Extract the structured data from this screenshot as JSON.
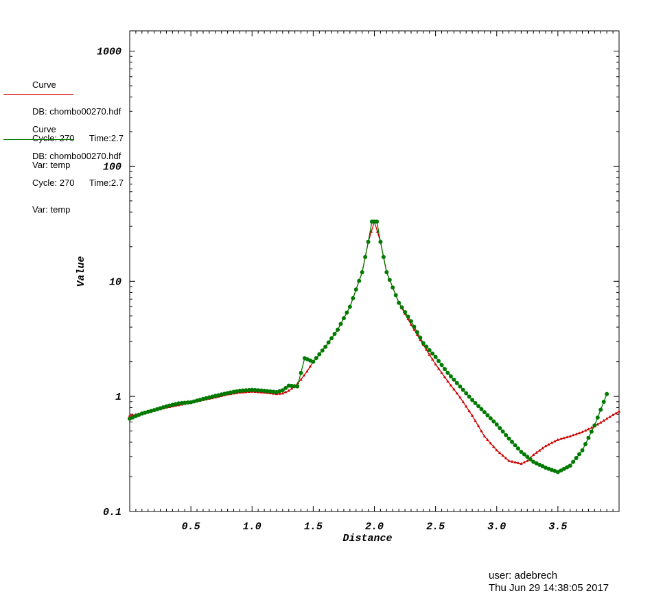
{
  "chart_data": {
    "type": "line",
    "xlabel": "Distance",
    "ylabel": "Value",
    "xlim": [
      0.0,
      4.0
    ],
    "ylim": [
      0.1,
      1500
    ],
    "y_scale": "log",
    "grid": false,
    "legend_position": "top-left",
    "x_ticks": [
      {
        "value": 0.5,
        "label": "0.5"
      },
      {
        "value": 1.0,
        "label": "1.0"
      },
      {
        "value": 1.5,
        "label": "1.5"
      },
      {
        "value": 2.0,
        "label": "2.0"
      },
      {
        "value": 2.5,
        "label": "2.5"
      },
      {
        "value": 3.0,
        "label": "3.0"
      },
      {
        "value": 3.5,
        "label": "3.5"
      }
    ],
    "y_ticks": [
      {
        "value": 0.1,
        "label": "0.1"
      },
      {
        "value": 1,
        "label": "1"
      },
      {
        "value": 10,
        "label": "10"
      },
      {
        "value": 100,
        "label": "100"
      },
      {
        "value": 1000,
        "label": "1000"
      }
    ],
    "series": [
      {
        "color": "#cc0000",
        "marker": "triangle",
        "points": [
          [
            0.0,
            0.68
          ],
          [
            0.1,
            0.71
          ],
          [
            0.2,
            0.75
          ],
          [
            0.3,
            0.8
          ],
          [
            0.4,
            0.84
          ],
          [
            0.5,
            0.88
          ],
          [
            0.6,
            0.93
          ],
          [
            0.7,
            0.98
          ],
          [
            0.8,
            1.04
          ],
          [
            0.9,
            1.08
          ],
          [
            1.0,
            1.1
          ],
          [
            1.1,
            1.08
          ],
          [
            1.2,
            1.05
          ],
          [
            1.25,
            1.06
          ],
          [
            1.3,
            1.12
          ],
          [
            1.35,
            1.22
          ],
          [
            1.4,
            1.4
          ],
          [
            1.45,
            1.65
          ],
          [
            1.5,
            2.0
          ],
          [
            1.6,
            2.7
          ],
          [
            1.7,
            3.8
          ],
          [
            1.8,
            6.0
          ],
          [
            1.9,
            12.0
          ],
          [
            1.95,
            22.0
          ],
          [
            2.0,
            33.0
          ],
          [
            2.05,
            22.0
          ],
          [
            2.1,
            12.0
          ],
          [
            2.2,
            6.5
          ],
          [
            2.3,
            4.2
          ],
          [
            2.4,
            2.8
          ],
          [
            2.5,
            1.9
          ],
          [
            2.6,
            1.35
          ],
          [
            2.7,
            0.98
          ],
          [
            2.8,
            0.68
          ],
          [
            2.9,
            0.45
          ],
          [
            3.0,
            0.34
          ],
          [
            3.1,
            0.275
          ],
          [
            3.2,
            0.26
          ],
          [
            3.25,
            0.275
          ],
          [
            3.3,
            0.31
          ],
          [
            3.4,
            0.37
          ],
          [
            3.5,
            0.42
          ],
          [
            3.6,
            0.45
          ],
          [
            3.7,
            0.49
          ],
          [
            3.8,
            0.55
          ],
          [
            3.9,
            0.64
          ],
          [
            4.0,
            0.74
          ]
        ]
      },
      {
        "color": "#007a00",
        "marker": "circle",
        "points": [
          [
            0.0,
            0.64
          ],
          [
            0.1,
            0.71
          ],
          [
            0.2,
            0.76
          ],
          [
            0.3,
            0.82
          ],
          [
            0.4,
            0.87
          ],
          [
            0.5,
            0.89
          ],
          [
            0.6,
            0.95
          ],
          [
            0.7,
            1.01
          ],
          [
            0.8,
            1.07
          ],
          [
            0.9,
            1.12
          ],
          [
            1.0,
            1.14
          ],
          [
            1.1,
            1.12
          ],
          [
            1.2,
            1.09
          ],
          [
            1.25,
            1.13
          ],
          [
            1.3,
            1.24
          ],
          [
            1.37,
            1.22
          ],
          [
            1.4,
            1.6
          ],
          [
            1.43,
            2.15
          ],
          [
            1.5,
            2.0
          ],
          [
            1.6,
            2.7
          ],
          [
            1.7,
            3.8
          ],
          [
            1.8,
            6.0
          ],
          [
            1.9,
            12.0
          ],
          [
            1.95,
            22.0
          ],
          [
            1.98,
            33.0
          ],
          [
            2.02,
            33.0
          ],
          [
            2.05,
            22.0
          ],
          [
            2.1,
            12.0
          ],
          [
            2.2,
            6.5
          ],
          [
            2.3,
            4.5
          ],
          [
            2.4,
            2.9
          ],
          [
            2.5,
            2.2
          ],
          [
            2.6,
            1.6
          ],
          [
            2.7,
            1.22
          ],
          [
            2.8,
            0.93
          ],
          [
            2.9,
            0.73
          ],
          [
            3.0,
            0.57
          ],
          [
            3.1,
            0.43
          ],
          [
            3.2,
            0.33
          ],
          [
            3.3,
            0.27
          ],
          [
            3.4,
            0.24
          ],
          [
            3.5,
            0.22
          ],
          [
            3.6,
            0.25
          ],
          [
            3.7,
            0.34
          ],
          [
            3.8,
            0.56
          ],
          [
            3.9,
            1.05
          ]
        ]
      }
    ]
  },
  "legend": [
    {
      "line1": "Curve",
      "line2": "DB: chombo00270.hdf",
      "line3": "Cycle: 270      Time:2.7",
      "line4": "Var: temp",
      "color": "#cc0000"
    },
    {
      "line1": "Curve",
      "line2": "DB: chombo00270.hdf",
      "line3": "Cycle: 270      Time:2.7",
      "line4": "Var: temp",
      "color": "#007a00"
    }
  ],
  "footer": {
    "user": "user: adebrech",
    "timestamp": "Thu Jun 29 14:38:05 2017"
  }
}
